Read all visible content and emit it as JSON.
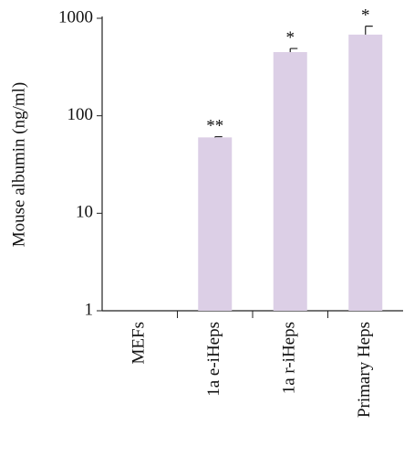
{
  "chart_data": {
    "type": "bar",
    "y_label": "Mouse albumin (ng/ml)",
    "categories": [
      "MEFs",
      "1a e-iHeps",
      "1a r-iHeps",
      "Primary Heps"
    ],
    "values": [
      1,
      60,
      450,
      680
    ],
    "errors": [
      0,
      1,
      40,
      150
    ],
    "significance": [
      null,
      "**",
      "*",
      "*"
    ],
    "color": "#dccfe6",
    "log_scale": true,
    "ylim": [
      1,
      1000
    ],
    "yticks": [
      1,
      10,
      100,
      1000
    ]
  }
}
